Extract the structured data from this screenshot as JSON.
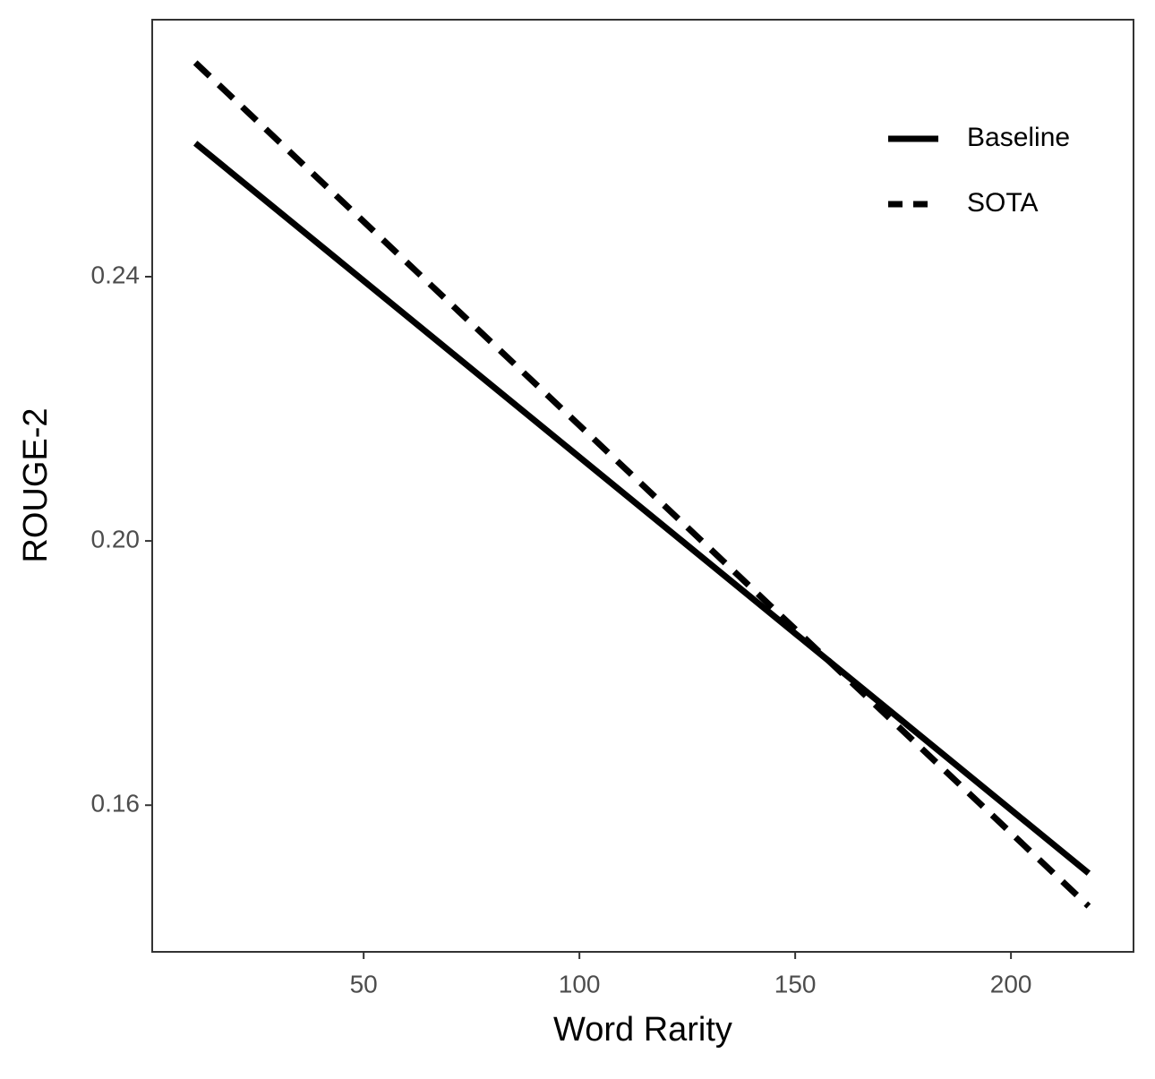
{
  "chart_data": {
    "type": "line",
    "x_label": "Word Rarity",
    "y_label": "ROUGE-2",
    "x": [
      11,
      218
    ],
    "series": [
      {
        "name": "Baseline",
        "color": "#000000",
        "line_style": "solid",
        "values": [
          0.2602,
          0.1497
        ]
      },
      {
        "name": "SOTA",
        "color": "#000000",
        "line_style": "dashed",
        "values": [
          0.2724,
          0.1447
        ]
      }
    ],
    "xlim": [
      1,
      228.4
    ],
    "ylim": [
      0.1378,
      0.2789
    ],
    "xticks": [
      50,
      100,
      150,
      200
    ],
    "yticks": [
      0.16,
      {
        "value": 0.2,
        "label": "0.20"
      },
      0.24
    ],
    "grid": false,
    "legend": "top-right"
  }
}
